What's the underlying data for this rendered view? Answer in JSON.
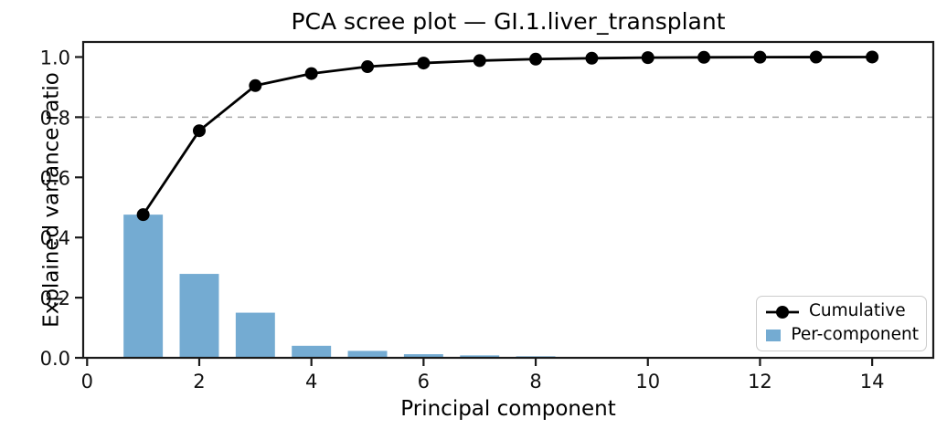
{
  "chart_data": {
    "type": "bar",
    "title": "PCA scree plot — GI.1.liver_transplant",
    "xlabel": "Principal component",
    "ylabel": "Explained variance ratio",
    "x": [
      1,
      2,
      3,
      4,
      5,
      6,
      7,
      8,
      9,
      10,
      11,
      12,
      13,
      14
    ],
    "series": [
      {
        "name": "Cumulative",
        "type": "line",
        "color": "#000000",
        "marker": "circle",
        "values": [
          0.476,
          0.755,
          0.905,
          0.945,
          0.968,
          0.98,
          0.988,
          0.993,
          0.996,
          0.998,
          0.999,
          0.9995,
          0.9998,
          1.0
        ]
      },
      {
        "name": "Per-component",
        "type": "bar",
        "color": "#74abd2",
        "values": [
          0.476,
          0.279,
          0.15,
          0.04,
          0.023,
          0.012,
          0.008,
          0.005,
          0.003,
          0.002,
          0.001,
          0.0005,
          0.0003,
          0.0002
        ]
      }
    ],
    "threshold_line": {
      "y": 0.8,
      "style": "dashed",
      "color": "#a6a6a6"
    },
    "xlim": [
      -0.07,
      15.09
    ],
    "ylim": [
      0,
      1.05
    ],
    "bar_width": 0.7,
    "xticks": [
      {
        "v": 0,
        "label": "0"
      },
      {
        "v": 2,
        "label": "2"
      },
      {
        "v": 4,
        "label": "4"
      },
      {
        "v": 6,
        "label": "6"
      },
      {
        "v": 8,
        "label": "8"
      },
      {
        "v": 10,
        "label": "10"
      },
      {
        "v": 12,
        "label": "12"
      },
      {
        "v": 14,
        "label": "14"
      }
    ],
    "yticks": [
      {
        "v": 0.0,
        "label": "0.0"
      },
      {
        "v": 0.2,
        "label": "0.2"
      },
      {
        "v": 0.4,
        "label": "0.4"
      },
      {
        "v": 0.6,
        "label": "0.6"
      },
      {
        "v": 0.8,
        "label": "0.8"
      },
      {
        "v": 1.0,
        "label": "1.0"
      }
    ],
    "grid": false,
    "legend": {
      "position": "lower right",
      "entries": [
        "Cumulative",
        "Per-component"
      ]
    }
  },
  "colors": {
    "bar_fill": "#74abd2",
    "cumulative_line": "#000000",
    "threshold_dash": "#a6a6a6",
    "axis": "#1a1a1a",
    "legend_border": "#cccccc",
    "background": "#ffffff"
  }
}
